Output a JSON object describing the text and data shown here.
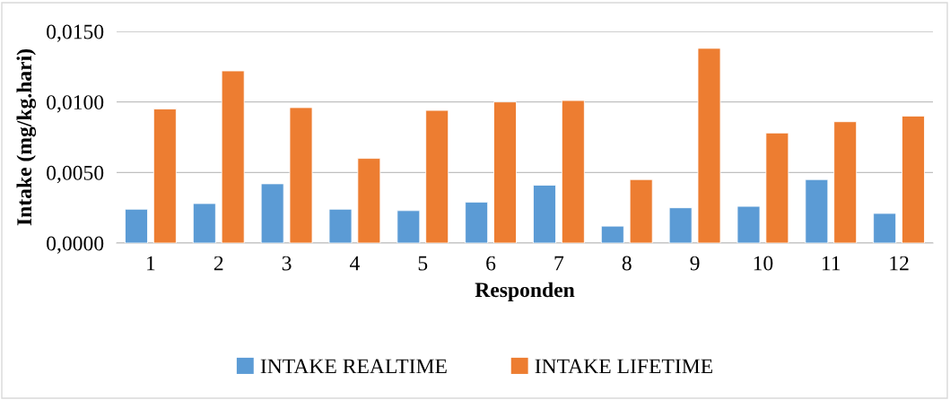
{
  "chart_data": {
    "type": "bar",
    "xlabel": "Responden",
    "ylabel": "Intake (mg/kg.hari)",
    "categories": [
      "1",
      "2",
      "3",
      "4",
      "5",
      "6",
      "7",
      "8",
      "9",
      "10",
      "11",
      "12"
    ],
    "series": [
      {
        "name": "INTAKE REALTIME",
        "color": "#5b9bd5",
        "values": [
          0.0024,
          0.0028,
          0.0042,
          0.0024,
          0.0023,
          0.0029,
          0.0041,
          0.0012,
          0.0025,
          0.0026,
          0.0045,
          0.0021
        ]
      },
      {
        "name": "INTAKE LIFETIME",
        "color": "#ed7d31",
        "values": [
          0.0095,
          0.0122,
          0.0096,
          0.006,
          0.0094,
          0.01,
          0.0101,
          0.0045,
          0.0138,
          0.0078,
          0.0086,
          0.009
        ]
      }
    ],
    "ylim": [
      0,
      0.015
    ],
    "yticks": [
      {
        "value": 0,
        "label": "0,0000"
      },
      {
        "value": 0.005,
        "label": "0,0050"
      },
      {
        "value": 0.01,
        "label": "0,0100"
      },
      {
        "value": 0.015,
        "label": "0,0150"
      }
    ],
    "grid": "y",
    "legend": "bottom"
  }
}
